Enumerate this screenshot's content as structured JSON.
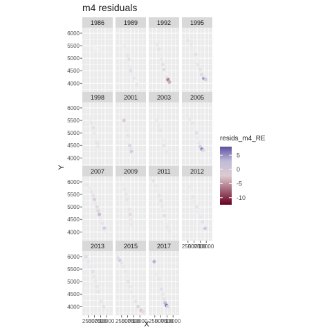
{
  "chart_data": {
    "type": "scatter",
    "title": "m4 residuals",
    "xlabel": "X",
    "ylabel": "Y",
    "y_ticks": [
      4000,
      4500,
      5000,
      5500,
      6000
    ],
    "x_tick_labels": [
      "2500",
      "5000",
      "7500",
      "10000"
    ],
    "ylim": [
      3650,
      6220
    ],
    "grid": true,
    "legend": {
      "title": "resids_m4_RE",
      "position": "right",
      "ticks": [
        5,
        0,
        -5,
        -10
      ],
      "range": [
        -12.5,
        8
      ],
      "colors": {
        "low": "#67001f",
        "mid": "#f7f7f7",
        "high": "#5e4fa2"
      }
    },
    "facets": [
      {
        "year": "1986",
        "points": [
          [
            0.4,
            5420,
            0.3
          ],
          [
            0.44,
            5400,
            -0.2
          ],
          [
            0.48,
            5380,
            0.4
          ],
          [
            0.37,
            5440,
            -0.4
          ],
          [
            0.52,
            5360,
            0.2
          ]
        ]
      },
      {
        "year": "1989",
        "points": [
          [
            0.3,
            5450,
            0.6
          ],
          [
            0.36,
            5300,
            -0.5
          ],
          [
            0.4,
            5100,
            1.0
          ],
          [
            0.44,
            4950,
            -1.2
          ],
          [
            0.42,
            4800,
            0.5
          ],
          [
            0.47,
            4650,
            -0.8
          ],
          [
            0.5,
            4500,
            1.2
          ],
          [
            0.55,
            4350,
            -0.6
          ],
          [
            0.6,
            4200,
            0.8
          ],
          [
            0.7,
            3940,
            -1.0
          ],
          [
            0.78,
            3900,
            0.5
          ],
          [
            0.66,
            4080,
            -0.3
          ]
        ]
      },
      {
        "year": "1992",
        "points": [
          [
            0.28,
            5550,
            -0.8
          ],
          [
            0.33,
            5350,
            1.0
          ],
          [
            0.38,
            5150,
            -0.6
          ],
          [
            0.42,
            4950,
            0.7
          ],
          [
            0.46,
            4750,
            -1.2
          ],
          [
            0.5,
            4550,
            1.4
          ],
          [
            0.55,
            4350,
            -0.4
          ],
          [
            0.63,
            4150,
            -6.5
          ],
          [
            0.68,
            4050,
            -4.0
          ],
          [
            0.58,
            4250,
            0.9
          ]
        ]
      },
      {
        "year": "1995",
        "points": [
          [
            0.2,
            5700,
            -1.0
          ],
          [
            0.3,
            5550,
            0.8
          ],
          [
            0.4,
            5350,
            -0.5
          ],
          [
            0.45,
            5150,
            1.2
          ],
          [
            0.48,
            4950,
            -0.4
          ],
          [
            0.52,
            4750,
            0.9
          ],
          [
            0.6,
            4550,
            -1.2
          ],
          [
            0.65,
            4350,
            1.5
          ],
          [
            0.72,
            4200,
            5.2
          ],
          [
            0.78,
            4150,
            2.0
          ],
          [
            0.75,
            4280,
            -0.6
          ]
        ]
      },
      {
        "year": "1998",
        "points": [
          [
            0.18,
            5650,
            0.6
          ],
          [
            0.25,
            5550,
            -0.5
          ],
          [
            0.3,
            5400,
            0.9
          ],
          [
            0.36,
            5200,
            -1.2
          ],
          [
            0.4,
            5000,
            0.7
          ],
          [
            0.44,
            4800,
            -0.6
          ],
          [
            0.48,
            4600,
            1.0
          ],
          [
            0.52,
            4450,
            -0.9
          ],
          [
            0.55,
            4300,
            0.5
          ]
        ]
      },
      {
        "year": "2001",
        "points": [
          [
            0.28,
            5500,
            -2.5
          ],
          [
            0.34,
            5300,
            0.6
          ],
          [
            0.38,
            5100,
            -0.8
          ],
          [
            0.41,
            4900,
            1.0
          ],
          [
            0.44,
            4700,
            -0.5
          ],
          [
            0.47,
            4500,
            1.6
          ],
          [
            0.5,
            4350,
            -1.0
          ],
          [
            0.53,
            4250,
            2.2
          ],
          [
            0.56,
            4150,
            -0.7
          ],
          [
            0.6,
            4050,
            0.5
          ]
        ]
      },
      {
        "year": "2003",
        "points": [
          [
            0.2,
            5700,
            0.5
          ],
          [
            0.26,
            5500,
            -0.7
          ],
          [
            0.32,
            5300,
            0.8
          ],
          [
            0.38,
            5100,
            -1.0
          ],
          [
            0.42,
            4900,
            0.6
          ],
          [
            0.46,
            4700,
            -0.6
          ],
          [
            0.5,
            4500,
            1.0
          ],
          [
            0.54,
            4350,
            -0.4
          ],
          [
            0.58,
            4250,
            0.7
          ]
        ]
      },
      {
        "year": "2005",
        "points": [
          [
            0.18,
            5700,
            0.6
          ],
          [
            0.26,
            5550,
            -0.8
          ],
          [
            0.34,
            5400,
            0.9
          ],
          [
            0.42,
            5200,
            -0.5
          ],
          [
            0.48,
            5000,
            1.2
          ],
          [
            0.52,
            4800,
            -0.7
          ],
          [
            0.56,
            4600,
            1.0
          ],
          [
            0.6,
            4450,
            2.0
          ],
          [
            0.66,
            4350,
            6.0
          ],
          [
            0.7,
            4300,
            1.5
          ]
        ]
      },
      {
        "year": "2007",
        "points": [
          [
            0.15,
            5900,
            0.8
          ],
          [
            0.22,
            5750,
            -0.6
          ],
          [
            0.3,
            5600,
            1.0
          ],
          [
            0.36,
            5450,
            -1.2
          ],
          [
            0.4,
            5300,
            2.0
          ],
          [
            0.44,
            5150,
            -0.9
          ],
          [
            0.48,
            5000,
            1.4
          ],
          [
            0.52,
            4850,
            -1.8
          ],
          [
            0.56,
            4700,
            3.0
          ],
          [
            0.6,
            4550,
            -0.7
          ],
          [
            0.66,
            4350,
            1.0
          ],
          [
            0.72,
            4150,
            2.2
          ],
          [
            0.78,
            4050,
            0.5
          ]
        ]
      },
      {
        "year": "2009",
        "points": [
          [
            0.25,
            5900,
            -0.6
          ],
          [
            0.3,
            5700,
            0.8
          ],
          [
            0.34,
            5500,
            -0.9
          ],
          [
            0.38,
            5300,
            1.0
          ],
          [
            0.42,
            5100,
            -0.6
          ],
          [
            0.45,
            4900,
            0.9
          ],
          [
            0.48,
            4700,
            -1.5
          ],
          [
            0.5,
            4500,
            0.7
          ],
          [
            0.53,
            4300,
            -0.8
          ],
          [
            0.56,
            4100,
            0.6
          ]
        ]
      },
      {
        "year": "2011",
        "points": [
          [
            0.15,
            6050,
            -1.0
          ],
          [
            0.22,
            5850,
            0.7
          ],
          [
            0.28,
            5650,
            -0.6
          ],
          [
            0.34,
            5450,
            1.0
          ],
          [
            0.4,
            5250,
            -1.2
          ],
          [
            0.44,
            5050,
            0.8
          ],
          [
            0.48,
            4850,
            -0.7
          ],
          [
            0.52,
            4650,
            1.2
          ],
          [
            0.56,
            4450,
            -0.5
          ],
          [
            0.62,
            4200,
            0.8
          ],
          [
            0.68,
            4050,
            -0.9
          ]
        ]
      },
      {
        "year": "2012",
        "points": [
          [
            0.22,
            5800,
            0.6
          ],
          [
            0.3,
            5600,
            -0.5
          ],
          [
            0.36,
            5400,
            0.9
          ],
          [
            0.42,
            5200,
            -0.8
          ],
          [
            0.48,
            5000,
            1.0
          ],
          [
            0.54,
            4800,
            -0.6
          ],
          [
            0.6,
            4600,
            0.8
          ],
          [
            0.68,
            4400,
            1.2
          ],
          [
            0.76,
            4150,
            2.5
          ],
          [
            0.72,
            4250,
            -0.4
          ]
        ]
      },
      {
        "year": "2013",
        "points": [
          [
            0.12,
            6000,
            -1.5
          ],
          [
            0.2,
            5800,
            0.8
          ],
          [
            0.28,
            5600,
            -0.7
          ],
          [
            0.34,
            5400,
            1.2
          ],
          [
            0.4,
            5200,
            -0.9
          ],
          [
            0.44,
            5000,
            0.7
          ],
          [
            0.48,
            4800,
            -1.0
          ],
          [
            0.52,
            4600,
            1.0
          ],
          [
            0.56,
            4400,
            -0.6
          ],
          [
            0.62,
            4200,
            0.9
          ],
          [
            0.7,
            4000,
            -1.2
          ],
          [
            0.76,
            3900,
            0.5
          ]
        ]
      },
      {
        "year": "2015",
        "points": [
          [
            0.08,
            5950,
            1.2
          ],
          [
            0.14,
            5850,
            2.0
          ],
          [
            0.2,
            5750,
            1.0
          ],
          [
            0.26,
            5600,
            -0.8
          ],
          [
            0.32,
            5400,
            0.9
          ],
          [
            0.38,
            5200,
            -0.6
          ],
          [
            0.42,
            5000,
            1.1
          ],
          [
            0.46,
            4800,
            -0.9
          ],
          [
            0.52,
            4600,
            0.7
          ],
          [
            0.58,
            4400,
            -0.8
          ],
          [
            0.66,
            4200,
            1.0
          ],
          [
            0.74,
            4000,
            1.6
          ],
          [
            0.84,
            3850,
            -2.5
          ],
          [
            0.9,
            3800,
            -1.5
          ]
        ]
      },
      {
        "year": "2017",
        "points": [
          [
            0.18,
            5800,
            3.5
          ],
          [
            0.28,
            5300,
            -0.6
          ],
          [
            0.34,
            5100,
            0.9
          ],
          [
            0.38,
            4900,
            -0.7
          ],
          [
            0.42,
            4700,
            1.2
          ],
          [
            0.46,
            4500,
            -0.9
          ],
          [
            0.5,
            4300,
            1.0
          ],
          [
            0.54,
            4150,
            3.0
          ],
          [
            0.58,
            4050,
            6.5
          ],
          [
            0.62,
            4000,
            1.5
          ]
        ]
      }
    ]
  }
}
